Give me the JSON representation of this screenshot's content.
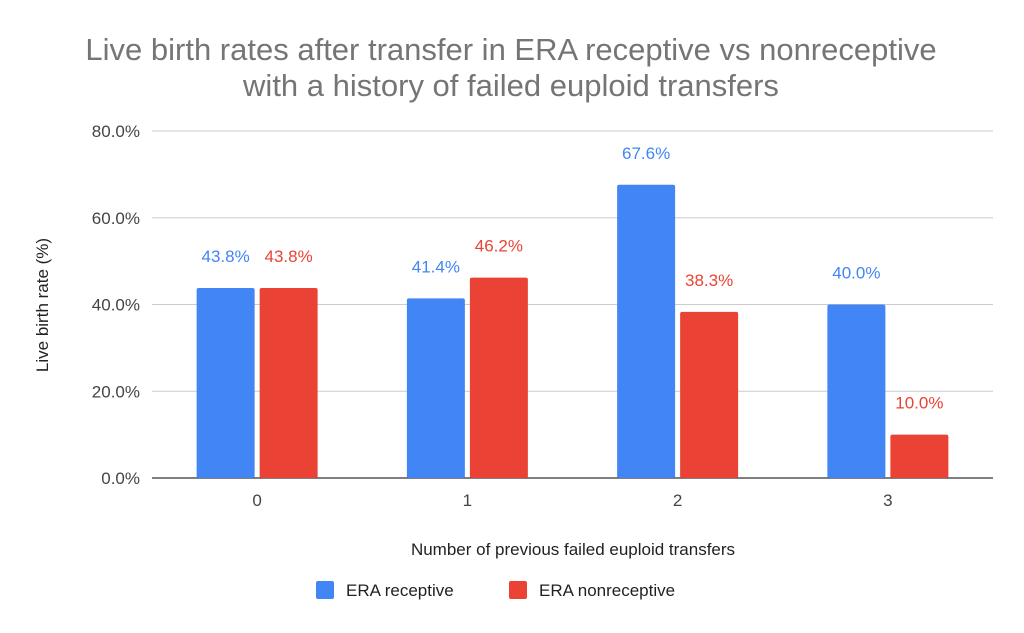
{
  "chart_data": {
    "type": "bar",
    "title": "Live birth rates after transfer in ERA receptive vs nonreceptive with a history of failed euploid transfers",
    "title_lines": [
      "Live birth rates after transfer in ERA receptive vs nonreceptive",
      "with a history of failed euploid transfers"
    ],
    "xlabel": "Number of previous failed euploid transfers",
    "ylabel": "Live birth rate (%)",
    "categories": [
      "0",
      "1",
      "2",
      "3"
    ],
    "ylim": [
      0,
      80
    ],
    "yticks": [
      {
        "value": 0,
        "label": "0.0%"
      },
      {
        "value": 20,
        "label": "20.0%"
      },
      {
        "value": 40,
        "label": "40.0%"
      },
      {
        "value": 60,
        "label": "60.0%"
      },
      {
        "value": 80,
        "label": "80.0%"
      }
    ],
    "grid": true,
    "legend_position": "bottom",
    "series": [
      {
        "name": "ERA receptive",
        "color": "#4285f4",
        "values": [
          43.8,
          41.4,
          67.6,
          40.0
        ],
        "labels": [
          "43.8%",
          "41.4%",
          "67.6%",
          "40.0%"
        ]
      },
      {
        "name": "ERA nonreceptive",
        "color": "#ea4335",
        "values": [
          43.8,
          46.2,
          38.3,
          10.0
        ],
        "labels": [
          "43.8%",
          "46.2%",
          "38.3%",
          "10.0%"
        ]
      }
    ]
  }
}
